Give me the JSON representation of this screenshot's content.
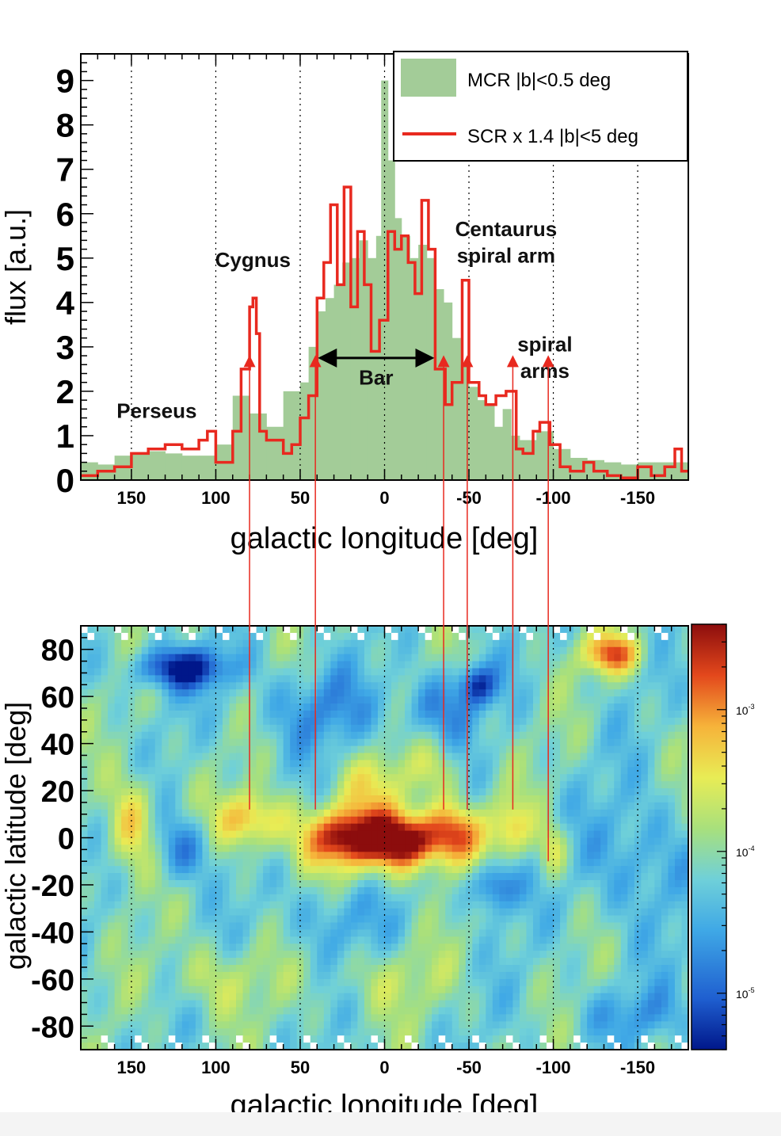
{
  "chart_data": [
    {
      "type": "bar",
      "title": "",
      "xlabel": "galactic longitude [deg]",
      "ylabel": "flux [a.u.]",
      "xlim": [
        180,
        -180
      ],
      "ylim": [
        0,
        9.6
      ],
      "xticks": [
        150,
        100,
        50,
        0,
        -50,
        -100,
        -150
      ],
      "xtick_labels": [
        "150",
        "100",
        "50",
        "0",
        "-50",
        "-100",
        "-150"
      ],
      "yticks": [
        0,
        1,
        2,
        3,
        4,
        5,
        6,
        7,
        8,
        9
      ],
      "ytick_labels": [
        "0",
        "1",
        "2",
        "3",
        "4",
        "5",
        "6",
        "7",
        "8",
        "9"
      ],
      "gridlines_x": [
        150,
        100,
        50,
        0,
        -50,
        -100,
        -150
      ],
      "legend_position": "top-right",
      "series": [
        {
          "name": "MCR |b|<0.5 deg",
          "kind": "filled-histogram",
          "color": "#a3cc98",
          "bins": [
            [
              180,
              170,
              0.4
            ],
            [
              170,
              160,
              0.35
            ],
            [
              160,
              150,
              0.55
            ],
            [
              150,
              140,
              0.6
            ],
            [
              140,
              130,
              0.65
            ],
            [
              130,
              120,
              0.6
            ],
            [
              120,
              110,
              0.55
            ],
            [
              110,
              100,
              0.55
            ],
            [
              100,
              90,
              0.8
            ],
            [
              90,
              80,
              1.9
            ],
            [
              80,
              70,
              1.5
            ],
            [
              70,
              60,
              1.2
            ],
            [
              60,
              50,
              2.0
            ],
            [
              50,
              45,
              2.2
            ],
            [
              45,
              40,
              3.0
            ],
            [
              40,
              35,
              3.8
            ],
            [
              35,
              30,
              4.1
            ],
            [
              30,
              25,
              4.4
            ],
            [
              25,
              20,
              4.9
            ],
            [
              20,
              15,
              5.0
            ],
            [
              15,
              10,
              5.4
            ],
            [
              10,
              5,
              5.0
            ],
            [
              5,
              2,
              5.5
            ],
            [
              2,
              -2,
              9.0
            ],
            [
              -2,
              -6,
              7.2
            ],
            [
              -6,
              -10,
              5.9
            ],
            [
              -10,
              -15,
              5.5
            ],
            [
              -15,
              -20,
              5.0
            ],
            [
              -20,
              -25,
              5.3
            ],
            [
              -25,
              -30,
              5.0
            ],
            [
              -30,
              -35,
              4.3
            ],
            [
              -35,
              -40,
              4.0
            ],
            [
              -40,
              -45,
              3.2
            ],
            [
              -45,
              -50,
              2.6
            ],
            [
              -50,
              -55,
              2.1
            ],
            [
              -55,
              -60,
              1.8
            ],
            [
              -60,
              -65,
              1.7
            ],
            [
              -65,
              -70,
              1.2
            ],
            [
              -70,
              -75,
              1.6
            ],
            [
              -75,
              -80,
              1.0
            ],
            [
              -80,
              -90,
              0.9
            ],
            [
              -90,
              -100,
              1.1
            ],
            [
              -100,
              -110,
              0.7
            ],
            [
              -110,
              -120,
              0.5
            ],
            [
              -120,
              -130,
              0.45
            ],
            [
              -130,
              -140,
              0.4
            ],
            [
              -140,
              -150,
              0.35
            ],
            [
              -150,
              -160,
              0.4
            ],
            [
              -160,
              -170,
              0.4
            ],
            [
              -170,
              -180,
              0.4
            ]
          ]
        },
        {
          "name": "SCR x 1.4 |b|<5 deg",
          "kind": "step-line",
          "color": "#e8291f",
          "bins": [
            [
              180,
              170,
              0.1
            ],
            [
              170,
              160,
              0.2
            ],
            [
              160,
              150,
              0.3
            ],
            [
              150,
              140,
              0.6
            ],
            [
              140,
              130,
              0.7
            ],
            [
              130,
              120,
              0.8
            ],
            [
              120,
              110,
              0.7
            ],
            [
              110,
              105,
              0.9
            ],
            [
              105,
              100,
              1.1
            ],
            [
              100,
              90,
              0.4
            ],
            [
              90,
              85,
              1.1
            ],
            [
              85,
              80,
              2.5
            ],
            [
              80,
              78,
              3.9
            ],
            [
              78,
              76,
              4.1
            ],
            [
              76,
              74,
              3.3
            ],
            [
              74,
              70,
              1.1
            ],
            [
              70,
              60,
              0.9
            ],
            [
              60,
              55,
              0.6
            ],
            [
              55,
              50,
              0.8
            ],
            [
              50,
              45,
              1.4
            ],
            [
              45,
              40,
              1.9
            ],
            [
              40,
              36,
              4.1
            ],
            [
              36,
              32,
              4.9
            ],
            [
              32,
              28,
              6.2
            ],
            [
              28,
              24,
              4.4
            ],
            [
              24,
              20,
              6.6
            ],
            [
              20,
              16,
              3.9
            ],
            [
              16,
              12,
              5.6
            ],
            [
              12,
              8,
              4.4
            ],
            [
              8,
              3,
              2.9
            ],
            [
              3,
              -2,
              3.6
            ],
            [
              -2,
              -6,
              5.6
            ],
            [
              -6,
              -10,
              5.2
            ],
            [
              -10,
              -14,
              5.5
            ],
            [
              -14,
              -18,
              4.9
            ],
            [
              -18,
              -22,
              4.2
            ],
            [
              -22,
              -26,
              6.3
            ],
            [
              -26,
              -30,
              5.2
            ],
            [
              -30,
              -36,
              2.5
            ],
            [
              -36,
              -40,
              1.7
            ],
            [
              -40,
              -46,
              2.2
            ],
            [
              -46,
              -50,
              4.5
            ],
            [
              -50,
              -56,
              2.2
            ],
            [
              -56,
              -60,
              1.9
            ],
            [
              -60,
              -66,
              1.7
            ],
            [
              -66,
              -72,
              1.9
            ],
            [
              -72,
              -78,
              2.0
            ],
            [
              -78,
              -82,
              0.7
            ],
            [
              -82,
              -88,
              0.6
            ],
            [
              -88,
              -92,
              1.1
            ],
            [
              -92,
              -98,
              1.3
            ],
            [
              -98,
              -104,
              0.8
            ],
            [
              -104,
              -110,
              0.3
            ],
            [
              -110,
              -118,
              0.2
            ],
            [
              -118,
              -124,
              0.4
            ],
            [
              -124,
              -132,
              0.2
            ],
            [
              -132,
              -140,
              0.1
            ],
            [
              -140,
              -150,
              0.05
            ],
            [
              -150,
              -158,
              0.3
            ],
            [
              -158,
              -166,
              0.1
            ],
            [
              -166,
              -172,
              0.3
            ],
            [
              -172,
              -176,
              0.7
            ],
            [
              -176,
              -180,
              0.2
            ]
          ]
        }
      ],
      "annotations": [
        {
          "text": "Perseus",
          "l": 135,
          "flux": 1.4
        },
        {
          "text": "Cygnus",
          "l": 78,
          "flux": 4.8
        },
        {
          "text": "Bar",
          "l": 5,
          "flux": 2.15
        },
        {
          "text": "Centaurus",
          "l": -72,
          "flux": 5.5
        },
        {
          "text": "spiral arm",
          "l": -72,
          "flux": 4.9
        },
        {
          "text": "spiral",
          "l": -95,
          "flux": 2.9
        },
        {
          "text": "arms",
          "l": -95,
          "flux": 2.3
        }
      ],
      "bar_range": {
        "from": 40,
        "to": -30,
        "flux": 2.75
      },
      "arrow_longitudes": [
        80,
        41,
        -35,
        -49,
        -76,
        -97
      ]
    },
    {
      "type": "heatmap",
      "title": "",
      "xlabel": "galactic longitude [deg]",
      "ylabel": "galactic latitude [deg]",
      "xlim": [
        180,
        -180
      ],
      "ylim": [
        -90,
        90
      ],
      "xticks": [
        150,
        100,
        50,
        0,
        -50,
        -100,
        -150
      ],
      "xtick_labels": [
        "150",
        "100",
        "50",
        "0",
        "-50",
        "-100",
        "-150"
      ],
      "yticks": [
        80,
        60,
        40,
        20,
        0,
        -20,
        -40,
        -60,
        -80
      ],
      "ytick_labels": [
        "80",
        "60",
        "40",
        "20",
        "0",
        "-20",
        "-40",
        "-60",
        "-80"
      ],
      "colorbar": {
        "scale": "log",
        "min": 4e-06,
        "max": 0.004,
        "tick_values": [
          0.001,
          0.0001,
          1e-05
        ],
        "tick_exponents": [
          "-3",
          "-4",
          "-5"
        ],
        "tick_base": "10"
      },
      "features": [
        {
          "l": 0,
          "b": 0,
          "sigma_l": 35,
          "sigma_b": 10,
          "amp": 1.6
        },
        {
          "l": -10,
          "b": -2,
          "sigma_l": 12,
          "sigma_b": 6,
          "amp": 0.7
        },
        {
          "l": 25,
          "b": 0,
          "sigma_l": 10,
          "sigma_b": 6,
          "amp": 0.5
        },
        {
          "l": -40,
          "b": 2,
          "sigma_l": 10,
          "sigma_b": 8,
          "amp": 0.6
        },
        {
          "l": 5,
          "b": 25,
          "sigma_l": 15,
          "sigma_b": 8,
          "amp": 0.45
        },
        {
          "l": -30,
          "b": 30,
          "sigma_l": 10,
          "sigma_b": 8,
          "amp": 0.45
        },
        {
          "l": 80,
          "b": 8,
          "sigma_l": 14,
          "sigma_b": 8,
          "amp": 0.9
        },
        {
          "l": 150,
          "b": 5,
          "sigma_l": 10,
          "sigma_b": 15,
          "amp": 0.85
        },
        {
          "l": -75,
          "b": 5,
          "sigma_l": 8,
          "sigma_b": 8,
          "amp": 0.55
        },
        {
          "l": -100,
          "b": -5,
          "sigma_l": 6,
          "sigma_b": 8,
          "amp": 0.6
        },
        {
          "l": -135,
          "b": 78,
          "sigma_l": 12,
          "sigma_b": 6,
          "amp": 1.2
        },
        {
          "l": 120,
          "b": 72,
          "sigma_l": 20,
          "sigma_b": 6,
          "amp": -1.2
        },
        {
          "l": -55,
          "b": 65,
          "sigma_l": 8,
          "sigma_b": 6,
          "amp": -1.0
        },
        {
          "l": -65,
          "b": -20,
          "sigma_l": 10,
          "sigma_b": 8,
          "amp": -0.9
        },
        {
          "l": 120,
          "b": -5,
          "sigma_l": 12,
          "sigma_b": 10,
          "amp": -0.7
        },
        {
          "l": 40,
          "b": 55,
          "sigma_l": 25,
          "sigma_b": 12,
          "amp": -0.5
        },
        {
          "l": -30,
          "b": 55,
          "sigma_l": 15,
          "sigma_b": 10,
          "amp": -0.6
        },
        {
          "l": -150,
          "b": -10,
          "sigma_l": 20,
          "sigma_b": 20,
          "amp": -0.5
        },
        {
          "l": 30,
          "b": -35,
          "sigma_l": 20,
          "sigma_b": 12,
          "amp": -0.4
        },
        {
          "l": 100,
          "b": -60,
          "sigma_l": 20,
          "sigma_b": 10,
          "amp": 0.45
        },
        {
          "l": 0,
          "b": -60,
          "sigma_l": 25,
          "sigma_b": 10,
          "amp": 0.35
        },
        {
          "l": -150,
          "b": -75,
          "sigma_l": 25,
          "sigma_b": 8,
          "amp": -0.4
        }
      ]
    }
  ],
  "colors": {
    "histogram_fill": "#a3cc98",
    "step_line": "#e8291f",
    "arrow": "#e8291f",
    "bar_arrow": "#000000",
    "gridline": "#000000"
  }
}
